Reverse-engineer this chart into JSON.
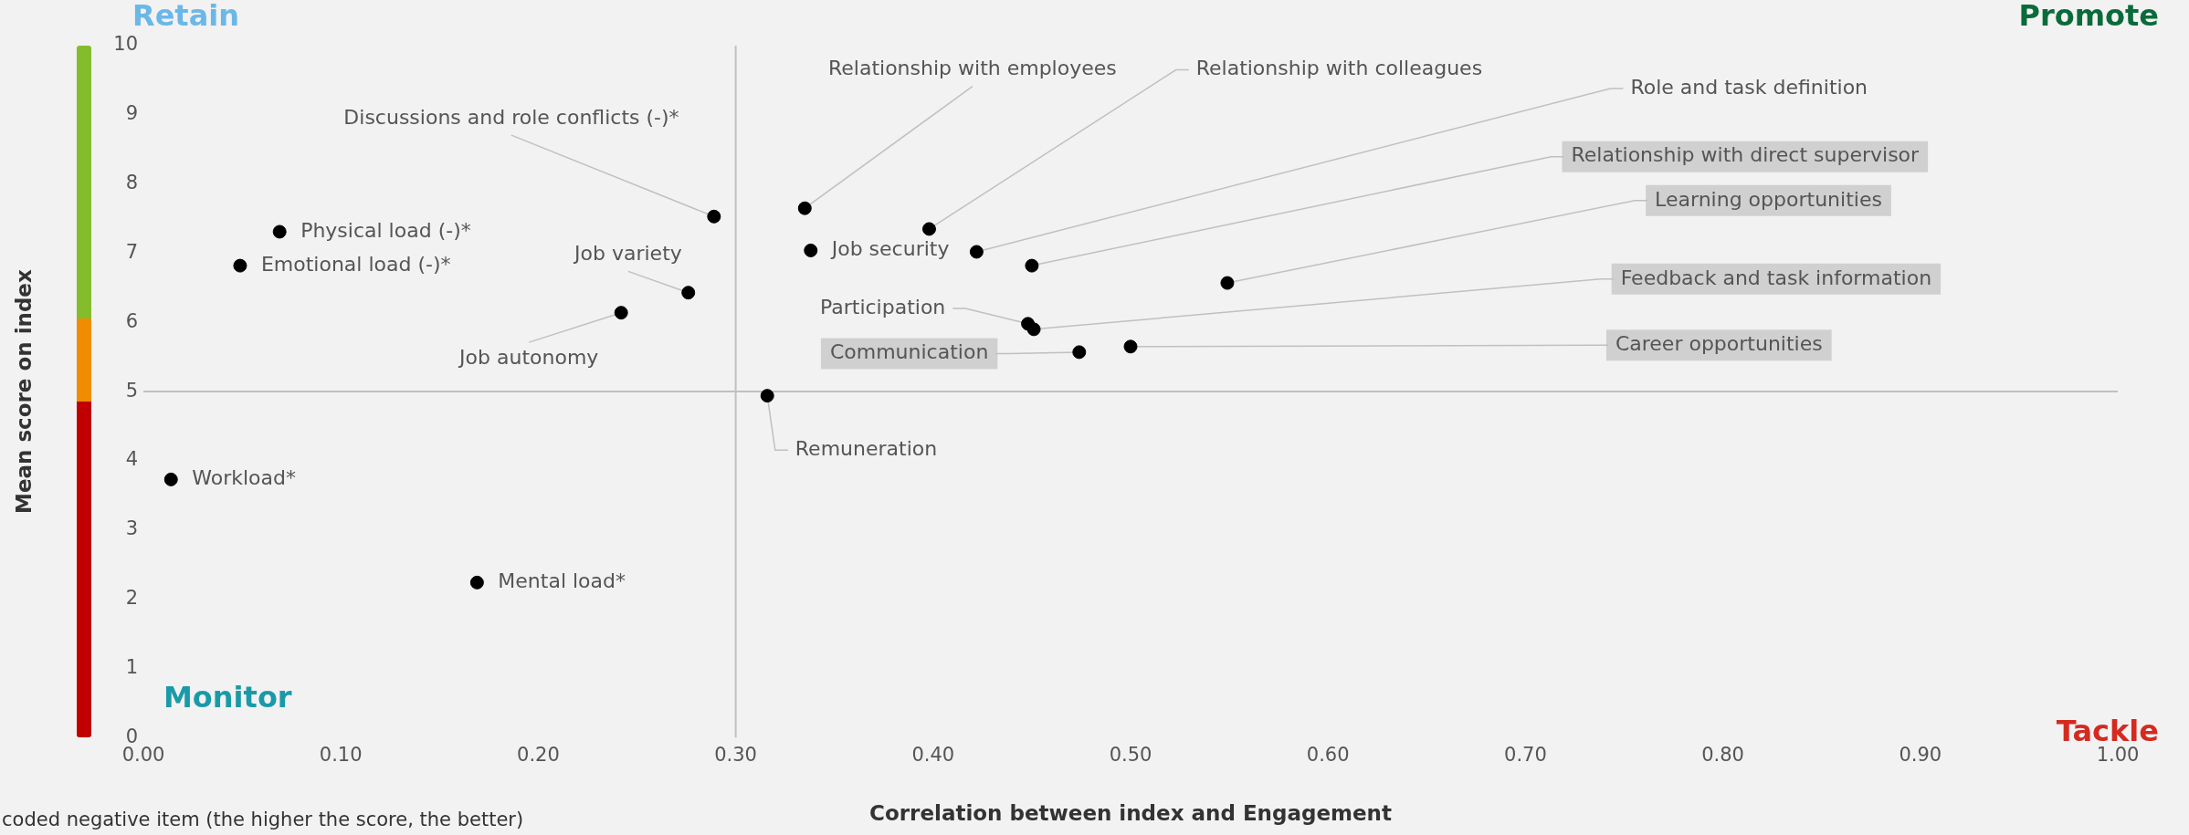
{
  "chart_data": {
    "type": "scatter",
    "xlabel": "Correlation between index and Engagement",
    "ylabel": "Mean score on index",
    "x": [
      0.289,
      0.069,
      0.049,
      0.276,
      0.242,
      0.014,
      0.169,
      0.316,
      0.335,
      0.338,
      0.398,
      0.422,
      0.45,
      0.549,
      0.448,
      0.451,
      0.474,
      0.5
    ],
    "series": [
      {
        "color": "#000000",
        "values": [
          7.53,
          7.31,
          6.82,
          6.43,
          6.14,
          3.73,
          2.24,
          4.94,
          7.65,
          7.04,
          7.35,
          7.02,
          6.82,
          6.57,
          5.98,
          5.9,
          5.57,
          5.65
        ]
      }
    ],
    "marker": "circle",
    "grid": false,
    "legend": false,
    "xlim": [
      0,
      1
    ],
    "xticks": [
      {
        "value": 0,
        "label": "0.00"
      },
      {
        "value": 0.1,
        "label": "0.10"
      },
      {
        "value": 0.2,
        "label": "0.20"
      },
      {
        "value": 0.3,
        "label": "0.30"
      },
      {
        "value": 0.4,
        "label": "0.40"
      },
      {
        "value": 0.5,
        "label": "0.50"
      },
      {
        "value": 0.6,
        "label": "0.60"
      },
      {
        "value": 0.7,
        "label": "0.70"
      },
      {
        "value": 0.8,
        "label": "0.80"
      },
      {
        "value": 0.9,
        "label": "0.90"
      },
      {
        "value": 1,
        "label": "1.00"
      }
    ],
    "ylim": [
      0,
      10
    ],
    "yticks": [
      0,
      1,
      2,
      3,
      4,
      5,
      6,
      7,
      8,
      9,
      10
    ],
    "ref_lines": [
      {
        "axis": "x",
        "value": 0.3,
        "color": "#c0c0c0"
      },
      {
        "axis": "y",
        "value": 5,
        "color": "#c0c0c0"
      }
    ],
    "annotations": [
      {
        "text": "Discussions and role conflicts (-)*",
        "x": 0.289,
        "y": 7.53
      },
      {
        "text": "Physical load (-)*",
        "x": 0.069,
        "y": 7.31
      },
      {
        "text": "Emotional load (-)*",
        "x": 0.049,
        "y": 6.82
      },
      {
        "text": "Job variety",
        "x": 0.276,
        "y": 6.43
      },
      {
        "text": "Job autonomy",
        "x": 0.242,
        "y": 6.14
      },
      {
        "text": "Workload*",
        "x": 0.014,
        "y": 3.73
      },
      {
        "text": "Mental load*",
        "x": 0.169,
        "y": 2.24
      },
      {
        "text": "Remuneration",
        "x": 0.316,
        "y": 4.94
      },
      {
        "text": "Relationship with employees",
        "x": 0.335,
        "y": 7.65
      },
      {
        "text": "Job security",
        "x": 0.338,
        "y": 7.04
      },
      {
        "text": "Relationship with colleagues",
        "x": 0.398,
        "y": 7.35
      },
      {
        "text": "Role and task definition",
        "x": 0.422,
        "y": 7.02
      },
      {
        "text": "Relationship with direct supervisor",
        "x": 0.45,
        "y": 6.82
      },
      {
        "text": "Learning opportunities",
        "x": 0.549,
        "y": 6.57
      },
      {
        "text": "Participation",
        "x": 0.448,
        "y": 5.98
      },
      {
        "text": "Feedback and task information",
        "x": 0.451,
        "y": 5.9
      },
      {
        "text": "Communication",
        "x": 0.474,
        "y": 5.57
      },
      {
        "text": "Career opportunities",
        "x": 0.5,
        "y": 5.65
      },
      "Retain",
      "Promote",
      "Monitor",
      "Tackle",
      "coded negative item (the higher the score, the better)"
    ]
  }
}
